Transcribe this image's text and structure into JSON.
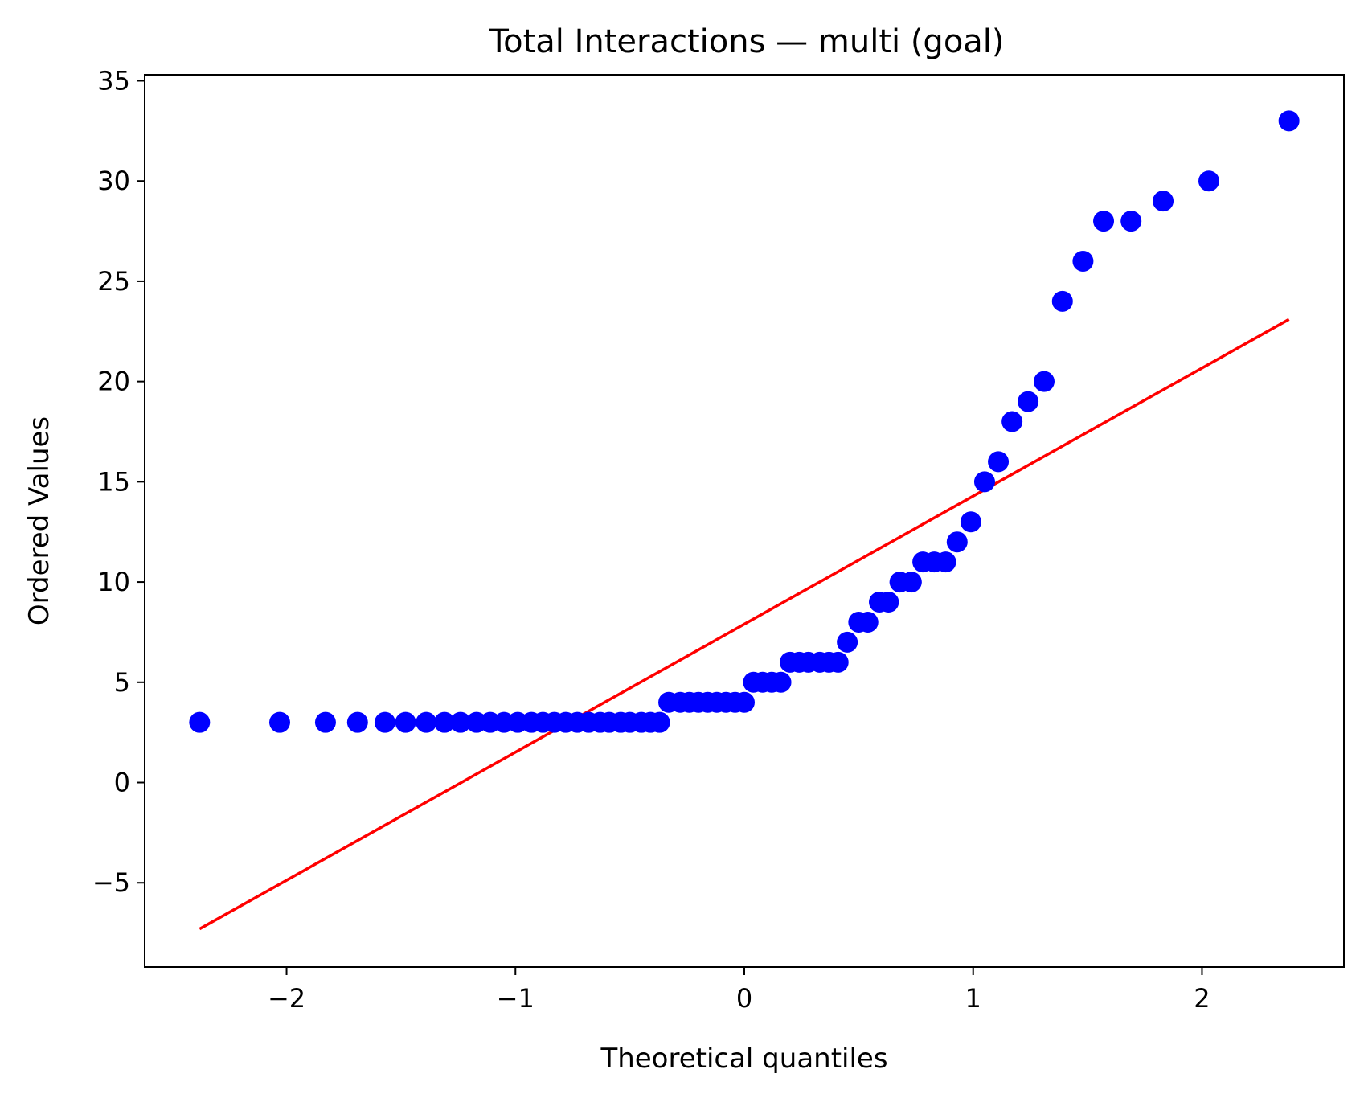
{
  "chart_data": {
    "type": "scatter",
    "title": "Total Interactions — multi (goal)",
    "xlabel": "Theoretical quantiles",
    "ylabel": "Ordered Values",
    "xlim": [
      -2.62,
      2.62
    ],
    "ylim": [
      -9.2,
      35.3
    ],
    "xticks": [
      -2,
      -1,
      0,
      1,
      2
    ],
    "xtick_labels": [
      "−2",
      "−1",
      "0",
      "1",
      "2"
    ],
    "yticks": [
      -5,
      0,
      5,
      10,
      15,
      20,
      25,
      30,
      35
    ],
    "ytick_labels": [
      "−5",
      "0",
      "5",
      "10",
      "15",
      "20",
      "25",
      "30",
      "35"
    ],
    "grid": false,
    "marker_color": "#0000ff",
    "line_color": "#ff0000",
    "points": {
      "x": [
        -2.38,
        -2.03,
        -1.83,
        -1.69,
        -1.57,
        -1.48,
        -1.39,
        -1.31,
        -1.24,
        -1.17,
        -1.11,
        -1.05,
        -0.99,
        -0.93,
        -0.88,
        -0.83,
        -0.78,
        -0.73,
        -0.68,
        -0.63,
        -0.59,
        -0.54,
        -0.5,
        -0.45,
        -0.41,
        -0.37,
        -0.33,
        -0.28,
        -0.24,
        -0.2,
        -0.16,
        -0.12,
        -0.08,
        -0.04,
        0.0,
        0.04,
        0.08,
        0.12,
        0.16,
        0.2,
        0.24,
        0.28,
        0.33,
        0.37,
        0.41,
        0.45,
        0.5,
        0.54,
        0.59,
        0.63,
        0.68,
        0.73,
        0.78,
        0.83,
        0.88,
        0.93,
        0.99,
        1.05,
        1.11,
        1.17,
        1.24,
        1.31,
        1.39,
        1.48,
        1.57,
        1.69,
        1.83,
        2.03,
        2.38
      ],
      "y": [
        3,
        3,
        3,
        3,
        3,
        3,
        3,
        3,
        3,
        3,
        3,
        3,
        3,
        3,
        3,
        3,
        3,
        3,
        3,
        3,
        3,
        3,
        3,
        3,
        3,
        3,
        4,
        4,
        4,
        4,
        4,
        4,
        4,
        4,
        4,
        5,
        5,
        5,
        5,
        6,
        6,
        6,
        6,
        6,
        6,
        7,
        8,
        8,
        9,
        9,
        10,
        10,
        11,
        11,
        11,
        12,
        13,
        15,
        16,
        18,
        19,
        20,
        24,
        26,
        28,
        28,
        29,
        30,
        33
      ]
    },
    "fit_line": {
      "x": [
        -2.38,
        2.38
      ],
      "y": [
        -7.3,
        23.1
      ]
    }
  }
}
